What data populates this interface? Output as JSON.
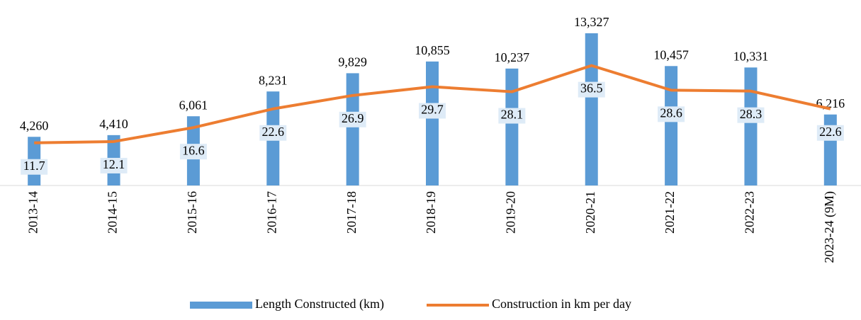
{
  "chart_data": {
    "type": "bar",
    "categories": [
      "2013-14",
      "2014-15",
      "2015-16",
      "2016-17",
      "2017-18",
      "2018-19",
      "2019-20",
      "2020-21",
      "2021-22",
      "2022-23",
      "2023-24 (9M)"
    ],
    "series": [
      {
        "name": "Length Constructed (km)",
        "color": "#5b9bd5",
        "type": "bar",
        "values": [
          4260,
          4410,
          6061,
          8231,
          9829,
          10855,
          10237,
          13327,
          10457,
          10331,
          6216
        ],
        "value_labels": [
          "4,260",
          "4,410",
          "6,061",
          "8,231",
          "9,829",
          "10,855",
          "10,237",
          "13,327",
          "10,457",
          "10,331",
          "6,216"
        ]
      },
      {
        "name": "Construction in km per day",
        "color": "#ed7d31",
        "type": "line",
        "axis": "y2",
        "values": [
          11.7,
          12.1,
          16.6,
          22.6,
          26.9,
          29.7,
          28.1,
          36.5,
          28.6,
          28.3,
          22.6
        ]
      }
    ],
    "ylim": [
      0,
      15000
    ],
    "y2lim": [
      -2,
      53
    ],
    "legend": "bottom"
  }
}
